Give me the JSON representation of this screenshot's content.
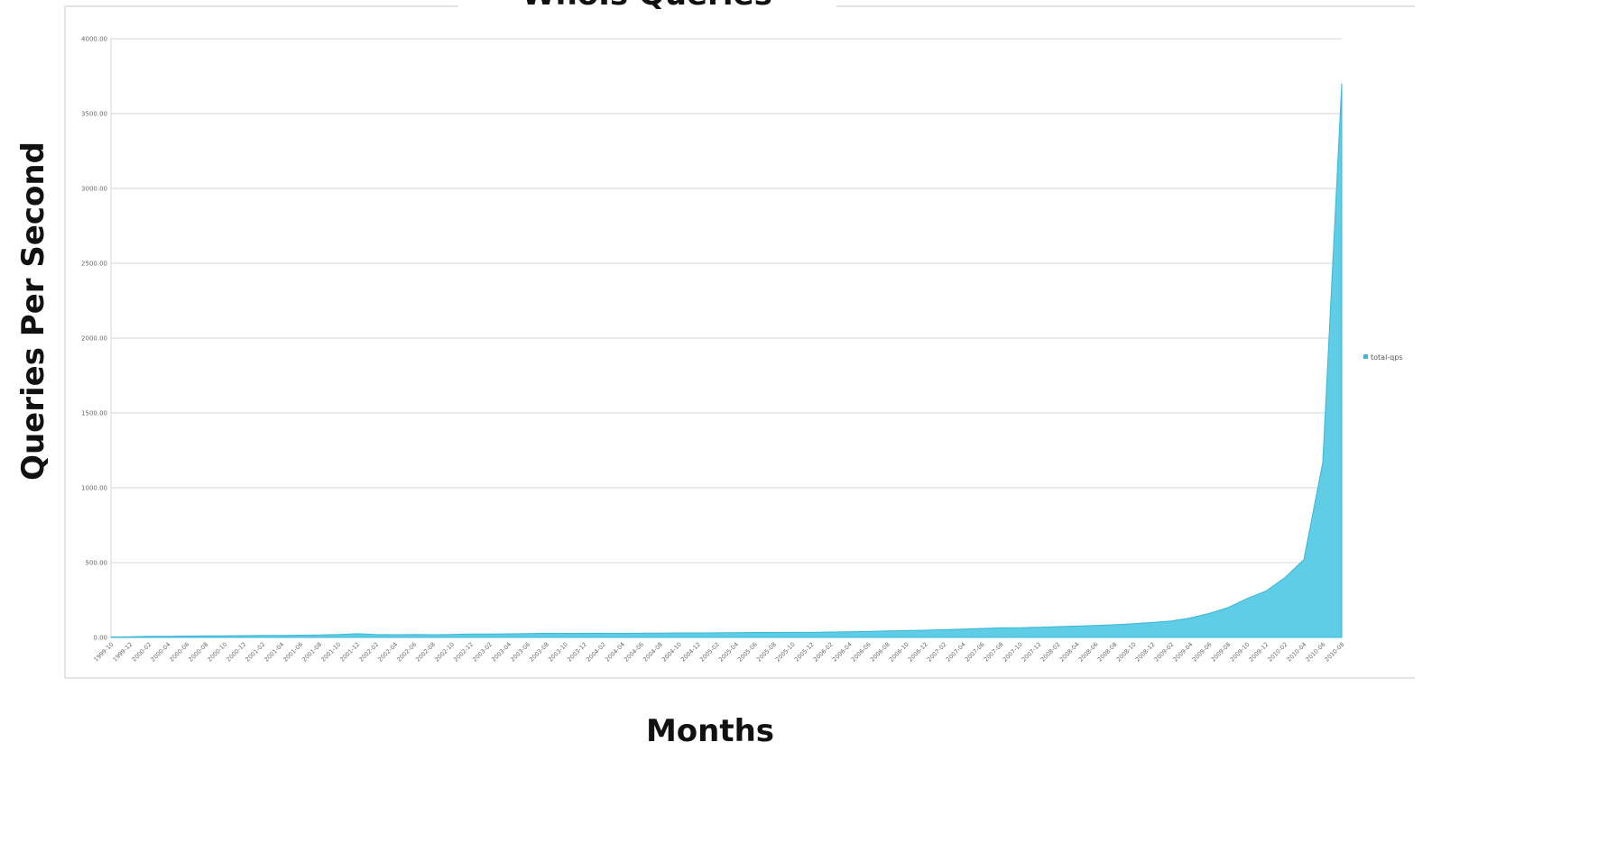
{
  "chart_data": {
    "type": "area",
    "title": "WhoIs Queries",
    "xlabel": "Months",
    "ylabel": "Queries Per Second",
    "ylim": [
      0,
      4000
    ],
    "yticks": [
      "0.00",
      "500.00",
      "1000.00",
      "1500.00",
      "2000.00",
      "2500.00",
      "3000.00",
      "3500.00",
      "4000.00"
    ],
    "grid": "horizontal",
    "legend_position": "right",
    "colors": {
      "fill": "#5fcde6",
      "stroke": "#3bb6d6",
      "grid": "#d4d4d4",
      "frame": "#c8c8c8"
    },
    "x": [
      "1999-10",
      "1999-12",
      "2000-02",
      "2000-04",
      "2000-06",
      "2000-08",
      "2000-10",
      "2000-12",
      "2001-02",
      "2001-04",
      "2001-06",
      "2001-08",
      "2001-10",
      "2001-12",
      "2002-02",
      "2002-04",
      "2002-06",
      "2002-08",
      "2002-10",
      "2002-12",
      "2003-02",
      "2003-04",
      "2003-06",
      "2003-08",
      "2003-10",
      "2003-12",
      "2004-02",
      "2004-04",
      "2004-06",
      "2004-08",
      "2004-10",
      "2004-12",
      "2005-02",
      "2005-04",
      "2005-06",
      "2005-08",
      "2005-10",
      "2005-12",
      "2006-02",
      "2006-04",
      "2006-06",
      "2006-08",
      "2006-10",
      "2006-12",
      "2007-02",
      "2007-04",
      "2007-06",
      "2007-08",
      "2007-10",
      "2007-12",
      "2008-02",
      "2008-04",
      "2008-06",
      "2008-08",
      "2008-10",
      "2008-12",
      "2009-02",
      "2009-04",
      "2009-06",
      "2009-08",
      "2009-10",
      "2009-12",
      "2010-02",
      "2010-04",
      "2010-06",
      "2010-08"
    ],
    "series": [
      {
        "name": "total-qps",
        "values": [
          3,
          5,
          7,
          8,
          9,
          10,
          11,
          12,
          13,
          14,
          15,
          17,
          19,
          25,
          20,
          18,
          20,
          18,
          20,
          22,
          23,
          24,
          26,
          28,
          27,
          28,
          28,
          27,
          29,
          29,
          30,
          30,
          31,
          32,
          33,
          33,
          34,
          34,
          36,
          38,
          40,
          44,
          46,
          48,
          52,
          56,
          60,
          64,
          65,
          68,
          72,
          76,
          80,
          85,
          92,
          100,
          110,
          130,
          160,
          200,
          260,
          310,
          400,
          520,
          1170,
          3700
        ]
      }
    ]
  }
}
